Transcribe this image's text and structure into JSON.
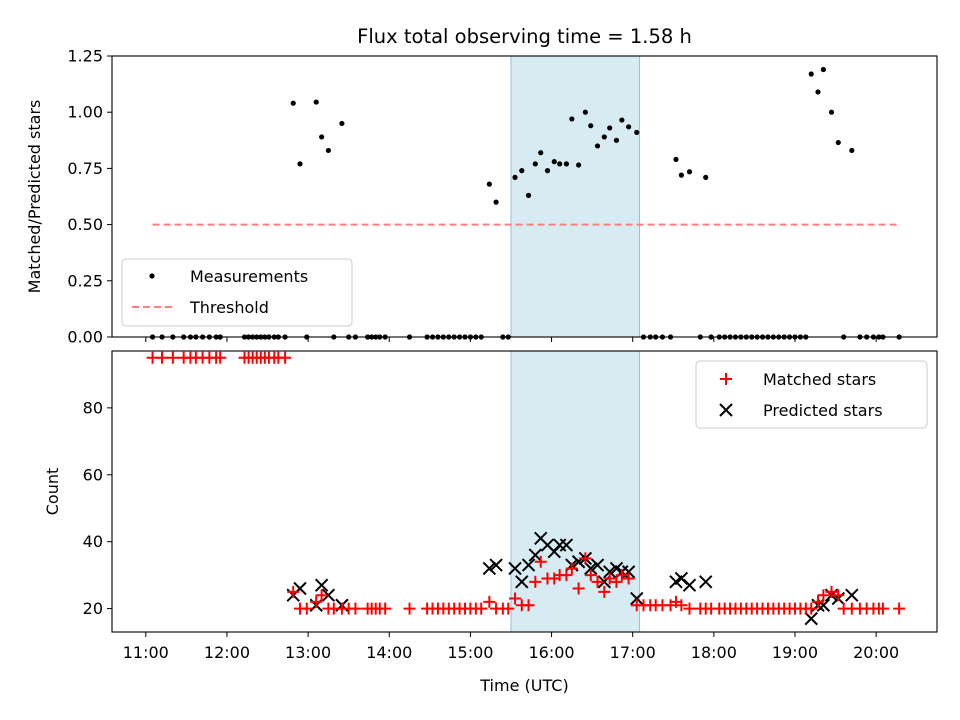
{
  "chart_data": {
    "type": "scatter",
    "title": "Flux total observing time = 1.58 h",
    "xlabel": "Time (UTC)",
    "x_ticks": [
      "11:00",
      "12:00",
      "13:00",
      "14:00",
      "15:00",
      "16:00",
      "17:00",
      "18:00",
      "19:00",
      "20:00"
    ],
    "shaded_interval": [
      "15:30",
      "17:05"
    ],
    "top": {
      "ylabel": "Matched/Predicted stars",
      "ylim": [
        0,
        1.25
      ],
      "y_ticks": [
        "0.00",
        "0.25",
        "0.50",
        "0.75",
        "1.00",
        "1.25"
      ],
      "legend_placement": "lower-left",
      "threshold": {
        "name": "Threshold",
        "value": 0.5,
        "x_range": [
          "11:05",
          "20:17"
        ]
      },
      "measurements": {
        "name": "Measurements",
        "points": [
          [
            "11:05",
            0
          ],
          [
            "11:12",
            0
          ],
          [
            "11:20",
            0
          ],
          [
            "11:28",
            0
          ],
          [
            "11:33",
            0
          ],
          [
            "11:37",
            0
          ],
          [
            "11:42",
            0
          ],
          [
            "11:47",
            0
          ],
          [
            "11:52",
            0
          ],
          [
            "11:55",
            0
          ],
          [
            "12:13",
            0
          ],
          [
            "12:16",
            0
          ],
          [
            "12:19",
            0
          ],
          [
            "12:22",
            0
          ],
          [
            "12:25",
            0
          ],
          [
            "12:28",
            0
          ],
          [
            "12:31",
            0
          ],
          [
            "12:35",
            0
          ],
          [
            "12:38",
            0
          ],
          [
            "12:43",
            0
          ],
          [
            "12:49",
            1.04
          ],
          [
            "12:54",
            0.77
          ],
          [
            "12:59",
            0
          ],
          [
            "13:06",
            1.045
          ],
          [
            "13:10",
            0.89
          ],
          [
            "13:15",
            0.83
          ],
          [
            "13:19",
            0
          ],
          [
            "13:25",
            0.95
          ],
          [
            "13:30",
            0
          ],
          [
            "13:35",
            0
          ],
          [
            "13:44",
            0
          ],
          [
            "13:47",
            0
          ],
          [
            "13:50",
            0
          ],
          [
            "13:53",
            0
          ],
          [
            "13:57",
            0
          ],
          [
            "14:15",
            0
          ],
          [
            "14:28",
            0
          ],
          [
            "14:32",
            0
          ],
          [
            "14:36",
            0
          ],
          [
            "14:40",
            0
          ],
          [
            "14:44",
            0
          ],
          [
            "14:48",
            0
          ],
          [
            "14:52",
            0
          ],
          [
            "14:56",
            0
          ],
          [
            "15:00",
            0
          ],
          [
            "15:04",
            0
          ],
          [
            "15:08",
            0
          ],
          [
            "15:14",
            0.68
          ],
          [
            "15:19",
            0.6
          ],
          [
            "15:24",
            0
          ],
          [
            "15:28",
            0
          ],
          [
            "15:33",
            0.71
          ],
          [
            "15:38",
            0.74
          ],
          [
            "15:43",
            0.63
          ],
          [
            "15:48",
            0.77
          ],
          [
            "15:52",
            0.82
          ],
          [
            "15:57",
            0.74
          ],
          [
            "16:02",
            0.78
          ],
          [
            "16:06",
            0.77
          ],
          [
            "16:11",
            0.77
          ],
          [
            "16:15",
            0.97
          ],
          [
            "16:20",
            0.765
          ],
          [
            "16:25",
            1.0
          ],
          [
            "16:29",
            0.94
          ],
          [
            "16:34",
            0.85
          ],
          [
            "16:39",
            0.89
          ],
          [
            "16:43",
            0.93
          ],
          [
            "16:48",
            0.875
          ],
          [
            "16:52",
            0.965
          ],
          [
            "16:57",
            0.935
          ],
          [
            "17:03",
            0.91
          ],
          [
            "17:08",
            0
          ],
          [
            "17:13",
            0
          ],
          [
            "17:17",
            0
          ],
          [
            "17:22",
            0
          ],
          [
            "17:28",
            0
          ],
          [
            "17:32",
            0.79
          ],
          [
            "17:36",
            0.72
          ],
          [
            "17:42",
            0.735
          ],
          [
            "17:50",
            0
          ],
          [
            "17:54",
            0.71
          ],
          [
            "17:58",
            0
          ],
          [
            "18:04",
            0
          ],
          [
            "18:08",
            0
          ],
          [
            "18:12",
            0
          ],
          [
            "18:16",
            0
          ],
          [
            "18:20",
            0
          ],
          [
            "18:24",
            0
          ],
          [
            "18:28",
            0
          ],
          [
            "18:32",
            0
          ],
          [
            "18:36",
            0
          ],
          [
            "18:40",
            0
          ],
          [
            "18:44",
            0
          ],
          [
            "18:48",
            0
          ],
          [
            "18:52",
            0
          ],
          [
            "18:56",
            0
          ],
          [
            "19:00",
            0
          ],
          [
            "19:04",
            0
          ],
          [
            "19:08",
            0
          ],
          [
            "19:12",
            1.17
          ],
          [
            "19:17",
            1.09
          ],
          [
            "19:21",
            1.19
          ],
          [
            "19:27",
            1.0
          ],
          [
            "19:32",
            0.865
          ],
          [
            "19:36",
            0
          ],
          [
            "19:42",
            0.83
          ],
          [
            "19:48",
            0
          ],
          [
            "19:53",
            0
          ],
          [
            "19:58",
            0
          ],
          [
            "20:02",
            0
          ],
          [
            "20:05",
            0
          ],
          [
            "20:17",
            0
          ]
        ]
      }
    },
    "bottom": {
      "ylabel": "Count",
      "ylim": [
        13,
        97
      ],
      "y_ticks": [
        "20",
        "40",
        "60",
        "80"
      ],
      "legend_placement": "top-right",
      "series": [
        {
          "name": "Matched stars",
          "marker": "+",
          "points": [
            [
              "11:05",
              95
            ],
            [
              "11:12",
              95
            ],
            [
              "11:20",
              95
            ],
            [
              "11:28",
              95
            ],
            [
              "11:33",
              95
            ],
            [
              "11:37",
              95
            ],
            [
              "11:42",
              95
            ],
            [
              "11:47",
              95
            ],
            [
              "11:52",
              95
            ],
            [
              "11:55",
              95
            ],
            [
              "12:13",
              95
            ],
            [
              "12:16",
              95
            ],
            [
              "12:19",
              95
            ],
            [
              "12:22",
              95
            ],
            [
              "12:25",
              95
            ],
            [
              "12:28",
              95
            ],
            [
              "12:31",
              95
            ],
            [
              "12:35",
              95
            ],
            [
              "12:38",
              95
            ],
            [
              "12:43",
              95
            ],
            [
              "12:49",
              25
            ],
            [
              "12:54",
              20
            ],
            [
              "12:59",
              20
            ],
            [
              "13:06",
              22
            ],
            [
              "13:10",
              24
            ],
            [
              "13:15",
              20
            ],
            [
              "13:19",
              20
            ],
            [
              "13:25",
              20
            ],
            [
              "13:30",
              20
            ],
            [
              "13:35",
              20
            ],
            [
              "13:44",
              20
            ],
            [
              "13:47",
              20
            ],
            [
              "13:50",
              20
            ],
            [
              "13:53",
              20
            ],
            [
              "13:57",
              20
            ],
            [
              "14:15",
              20
            ],
            [
              "14:28",
              20
            ],
            [
              "14:32",
              20
            ],
            [
              "14:36",
              20
            ],
            [
              "14:40",
              20
            ],
            [
              "14:44",
              20
            ],
            [
              "14:48",
              20
            ],
            [
              "14:52",
              20
            ],
            [
              "14:56",
              20
            ],
            [
              "15:00",
              20
            ],
            [
              "15:04",
              20
            ],
            [
              "15:08",
              20
            ],
            [
              "15:14",
              22
            ],
            [
              "15:19",
              20
            ],
            [
              "15:24",
              20
            ],
            [
              "15:28",
              20
            ],
            [
              "15:33",
              23
            ],
            [
              "15:38",
              21
            ],
            [
              "15:43",
              21
            ],
            [
              "15:48",
              28
            ],
            [
              "15:52",
              34
            ],
            [
              "15:57",
              29
            ],
            [
              "16:02",
              29
            ],
            [
              "16:06",
              30
            ],
            [
              "16:11",
              30
            ],
            [
              "16:15",
              32
            ],
            [
              "16:20",
              26
            ],
            [
              "16:25",
              35
            ],
            [
              "16:29",
              30
            ],
            [
              "16:34",
              28
            ],
            [
              "16:39",
              25
            ],
            [
              "16:43",
              29
            ],
            [
              "16:48",
              28
            ],
            [
              "16:52",
              30
            ],
            [
              "16:57",
              29
            ],
            [
              "17:03",
              21
            ],
            [
              "17:08",
              21
            ],
            [
              "17:13",
              21
            ],
            [
              "17:17",
              21
            ],
            [
              "17:22",
              21
            ],
            [
              "17:28",
              21
            ],
            [
              "17:32",
              22
            ],
            [
              "17:36",
              21
            ],
            [
              "17:42",
              20
            ],
            [
              "17:50",
              20
            ],
            [
              "17:54",
              20
            ],
            [
              "17:58",
              20
            ],
            [
              "18:04",
              20
            ],
            [
              "18:08",
              20
            ],
            [
              "18:12",
              20
            ],
            [
              "18:16",
              20
            ],
            [
              "18:20",
              20
            ],
            [
              "18:24",
              20
            ],
            [
              "18:28",
              20
            ],
            [
              "18:32",
              20
            ],
            [
              "18:36",
              20
            ],
            [
              "18:40",
              20
            ],
            [
              "18:44",
              20
            ],
            [
              "18:48",
              20
            ],
            [
              "18:52",
              20
            ],
            [
              "18:56",
              20
            ],
            [
              "19:00",
              20
            ],
            [
              "19:04",
              20
            ],
            [
              "19:08",
              20
            ],
            [
              "19:12",
              20
            ],
            [
              "19:17",
              22
            ],
            [
              "19:21",
              24
            ],
            [
              "19:27",
              25
            ],
            [
              "19:32",
              24
            ],
            [
              "19:36",
              20
            ],
            [
              "19:42",
              20
            ],
            [
              "19:48",
              20
            ],
            [
              "19:53",
              20
            ],
            [
              "19:58",
              20
            ],
            [
              "20:02",
              20
            ],
            [
              "20:05",
              20
            ],
            [
              "20:17",
              20
            ]
          ]
        },
        {
          "name": "Predicted stars",
          "marker": "x",
          "points": [
            [
              "12:49",
              24
            ],
            [
              "12:54",
              26
            ],
            [
              "13:06",
              21
            ],
            [
              "13:10",
              27
            ],
            [
              "13:15",
              24
            ],
            [
              "13:25",
              21
            ],
            [
              "15:14",
              32
            ],
            [
              "15:19",
              33
            ],
            [
              "15:33",
              32
            ],
            [
              "15:38",
              28
            ],
            [
              "15:43",
              33
            ],
            [
              "15:48",
              36
            ],
            [
              "15:52",
              41
            ],
            [
              "15:57",
              39
            ],
            [
              "16:02",
              37
            ],
            [
              "16:06",
              39
            ],
            [
              "16:11",
              39
            ],
            [
              "16:15",
              33
            ],
            [
              "16:20",
              34
            ],
            [
              "16:25",
              35
            ],
            [
              "16:29",
              32
            ],
            [
              "16:34",
              33
            ],
            [
              "16:39",
              28
            ],
            [
              "16:43",
              31
            ],
            [
              "16:48",
              32
            ],
            [
              "16:52",
              31
            ],
            [
              "16:57",
              31
            ],
            [
              "17:03",
              23
            ],
            [
              "17:32",
              28
            ],
            [
              "17:36",
              29
            ],
            [
              "17:42",
              27
            ],
            [
              "17:54",
              28
            ],
            [
              "19:12",
              17
            ],
            [
              "19:17",
              21
            ],
            [
              "19:21",
              21
            ],
            [
              "19:27",
              24
            ],
            [
              "19:32",
              23
            ],
            [
              "19:42",
              24
            ]
          ]
        }
      ]
    },
    "colors": {
      "shade": "#add8e6",
      "measurement": "#000000",
      "threshold": "#ff7f7f",
      "matched": "#ff0000",
      "predicted": "#000000",
      "legend_border": "#cccccc"
    }
  }
}
